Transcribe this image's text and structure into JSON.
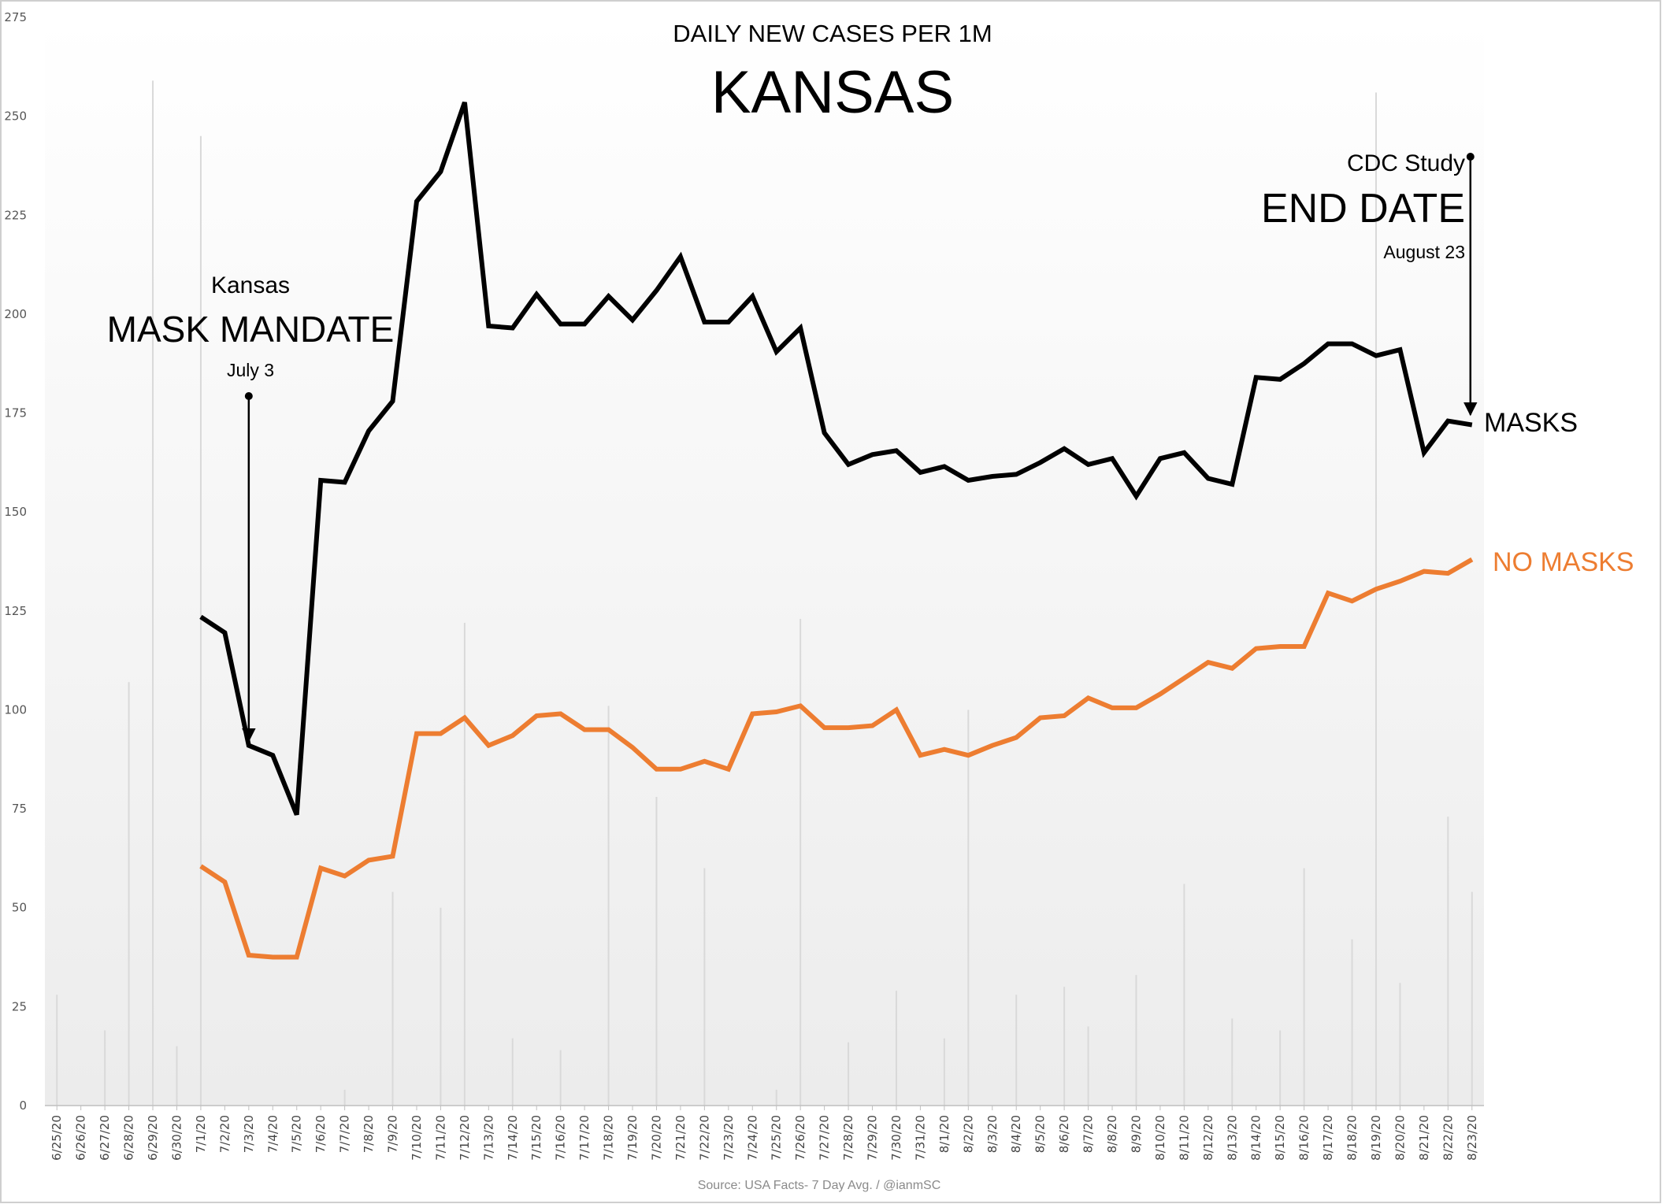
{
  "chart_data": {
    "type": "line",
    "subtitle": "DAILY NEW CASES PER 1M",
    "title": "KANSAS",
    "source": "Source: USA Facts- 7 Day Avg. / @ianmSC",
    "ylim": [
      0,
      275
    ],
    "yticks": [
      0,
      25,
      50,
      75,
      100,
      125,
      150,
      175,
      200,
      225,
      250,
      275
    ],
    "grid": "vertical",
    "categories": [
      "6/25/20",
      "6/26/20",
      "6/27/20",
      "6/28/20",
      "6/29/20",
      "6/30/20",
      "7/1/20",
      "7/2/20",
      "7/3/20",
      "7/4/20",
      "7/5/20",
      "7/6/20",
      "7/7/20",
      "7/8/20",
      "7/9/20",
      "7/10/20",
      "7/11/20",
      "7/12/20",
      "7/13/20",
      "7/14/20",
      "7/15/20",
      "7/16/20",
      "7/17/20",
      "7/18/20",
      "7/19/20",
      "7/20/20",
      "7/21/20",
      "7/22/20",
      "7/23/20",
      "7/24/20",
      "7/25/20",
      "7/26/20",
      "7/27/20",
      "7/28/20",
      "7/29/20",
      "7/30/20",
      "7/31/20",
      "8/1/20",
      "8/2/20",
      "8/3/20",
      "8/4/20",
      "8/5/20",
      "8/6/20",
      "8/7/20",
      "8/8/20",
      "8/9/20",
      "8/10/20",
      "8/11/20",
      "8/12/20",
      "8/13/20",
      "8/14/20",
      "8/15/20",
      "8/16/20",
      "8/17/20",
      "8/18/20",
      "8/19/20",
      "8/20/20",
      "8/21/20",
      "8/22/20",
      "8/23/20"
    ],
    "background_bars": [
      28,
      0,
      19,
      107,
      259,
      15,
      245,
      0,
      0,
      0,
      0,
      0,
      4,
      0,
      54,
      0,
      50,
      122,
      0,
      17,
      0,
      14,
      0,
      101,
      0,
      78,
      0,
      60,
      0,
      0,
      4,
      123,
      0,
      16,
      0,
      29,
      0,
      17,
      100,
      0,
      28,
      0,
      30,
      20,
      0,
      33,
      0,
      56,
      0,
      22,
      0,
      19,
      60,
      0,
      42,
      256,
      31,
      0,
      73,
      54
    ],
    "series": [
      {
        "name": "MASKS",
        "color": "#000000",
        "values": [
          null,
          null,
          null,
          null,
          null,
          null,
          123.5,
          119.5,
          91,
          88.5,
          73.5,
          158,
          157.5,
          170.5,
          178,
          228.5,
          236,
          253.5,
          197,
          196.5,
          205,
          197.5,
          197.5,
          204.5,
          198.5,
          206,
          214.5,
          198,
          198,
          204.5,
          190.5,
          196.5,
          170,
          162,
          164.5,
          165.5,
          160,
          161.5,
          158,
          159,
          159.5,
          162.5,
          166,
          162,
          163.5,
          154,
          163.5,
          165,
          158.5,
          157,
          184,
          183.5,
          187.5,
          192.5,
          192.5,
          189.5,
          191,
          165,
          173,
          172
        ]
      },
      {
        "name": "NO MASKS",
        "color": "#ED7D31",
        "values": [
          null,
          null,
          null,
          null,
          null,
          null,
          60.5,
          56.5,
          38,
          37.5,
          37.5,
          60,
          58,
          62,
          63,
          94,
          94,
          98,
          91,
          93.5,
          98.5,
          99,
          95,
          95,
          90.5,
          85,
          85,
          87,
          85,
          99,
          99.5,
          101,
          95.5,
          95.5,
          96,
          100,
          88.5,
          90,
          88.5,
          91,
          93,
          98,
          98.5,
          103,
          100.5,
          100.5,
          104,
          108,
          112,
          110.5,
          115.5,
          116,
          116,
          129.5,
          127.5,
          130.5,
          132.5,
          135,
          134.5,
          138
        ]
      }
    ],
    "annotations": [
      {
        "line1": "Kansas",
        "line2": "MASK MANDATE",
        "line3": "July 3",
        "at": "7/3/20"
      },
      {
        "line1": "CDC Study",
        "line2": "END DATE",
        "line3": "August 23",
        "at": "8/23/20"
      }
    ]
  }
}
